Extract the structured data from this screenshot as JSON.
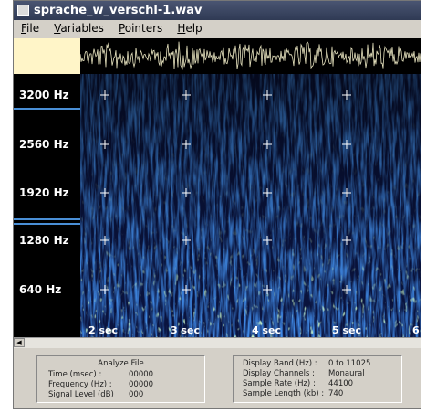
{
  "window": {
    "title": "sprache_w_verschl-1.wav"
  },
  "menu": [
    "File",
    "Variables",
    "Pointers",
    "Help"
  ],
  "frequency_labels": [
    "3200 Hz",
    "2560 Hz",
    "1920 Hz",
    "1280 Hz",
    "640 Hz"
  ],
  "time_labels": [
    "2 sec",
    "3 sec",
    "4 sec",
    "5 sec",
    "6"
  ],
  "analyze_panel": {
    "title": "Analyze File",
    "rows": [
      {
        "label": "Time (msec) :",
        "value": "00000"
      },
      {
        "label": "Frequency (Hz) :",
        "value": "00000"
      },
      {
        "label": "Signal Level (dB)",
        "value": "000"
      }
    ]
  },
  "display_panel": {
    "rows": [
      {
        "label": "Display Band (Hz) :",
        "value": "0 to 11025"
      },
      {
        "label": "Display Channels :",
        "value": "Monaural"
      },
      {
        "label": "Sample Rate (Hz) :",
        "value": "44100"
      },
      {
        "label": "Sample Length (kb) :",
        "value": "740"
      }
    ]
  }
}
